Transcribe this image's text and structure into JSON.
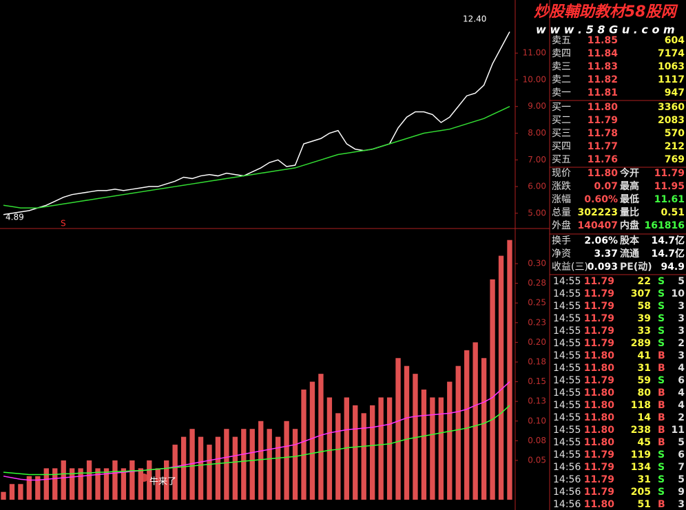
{
  "watermark": {
    "title": "炒股輔助教材58股网",
    "url": "w w w . 5 8 G u . c o m"
  },
  "price_chart": {
    "type": "line",
    "series": [
      {
        "color": "#ffffff",
        "values": [
          4.95,
          5.0,
          5.05,
          5.1,
          5.2,
          5.3,
          5.45,
          5.6,
          5.7,
          5.75,
          5.8,
          5.85,
          5.85,
          5.9,
          5.85,
          5.9,
          5.95,
          6.0,
          6.0,
          6.1,
          6.2,
          6.35,
          6.3,
          6.4,
          6.45,
          6.4,
          6.5,
          6.45,
          6.4,
          6.55,
          6.7,
          6.9,
          7.0,
          6.75,
          6.8,
          7.6,
          7.7,
          7.8,
          8.0,
          8.1,
          7.6,
          7.4,
          7.35,
          7.4,
          7.5,
          7.6,
          8.2,
          8.6,
          8.8,
          8.8,
          8.7,
          8.4,
          8.6,
          9.0,
          9.4,
          9.5,
          9.8,
          10.6,
          11.2,
          11.8
        ]
      },
      {
        "color": "#33dd33",
        "values": [
          5.3,
          5.25,
          5.2,
          5.2,
          5.2,
          5.25,
          5.3,
          5.35,
          5.4,
          5.45,
          5.5,
          5.55,
          5.6,
          5.65,
          5.7,
          5.75,
          5.8,
          5.85,
          5.9,
          5.95,
          6.0,
          6.05,
          6.1,
          6.15,
          6.2,
          6.25,
          6.3,
          6.35,
          6.4,
          6.45,
          6.5,
          6.55,
          6.6,
          6.65,
          6.7,
          6.8,
          6.9,
          7.0,
          7.1,
          7.2,
          7.25,
          7.3,
          7.35,
          7.4,
          7.5,
          7.6,
          7.7,
          7.8,
          7.9,
          8.0,
          8.05,
          8.1,
          8.15,
          8.25,
          8.35,
          8.45,
          8.55,
          8.7,
          8.85,
          9.0
        ]
      }
    ],
    "ylim": [
      4.48,
      12.99
    ],
    "yticks": [
      {
        "value": 11,
        "label": "11.00"
      },
      {
        "value": 10,
        "label": "10.00"
      },
      {
        "value": 9,
        "label": "9.00"
      },
      {
        "value": 8,
        "label": "8.00"
      },
      {
        "value": 7,
        "label": "7.00"
      },
      {
        "value": 6,
        "label": "6.00"
      },
      {
        "value": 5,
        "label": "5.00"
      }
    ],
    "annotations": [
      "12.40",
      "4.89",
      "S"
    ]
  },
  "volume_chart": {
    "type": "bar",
    "values": [
      0.01,
      0.02,
      0.02,
      0.03,
      0.03,
      0.04,
      0.04,
      0.05,
      0.04,
      0.04,
      0.05,
      0.04,
      0.04,
      0.05,
      0.04,
      0.05,
      0.04,
      0.05,
      0.04,
      0.05,
      0.07,
      0.08,
      0.09,
      0.08,
      0.07,
      0.08,
      0.09,
      0.08,
      0.09,
      0.09,
      0.1,
      0.09,
      0.08,
      0.1,
      0.09,
      0.14,
      0.15,
      0.16,
      0.13,
      0.11,
      0.13,
      0.12,
      0.11,
      0.12,
      0.13,
      0.13,
      0.18,
      0.17,
      0.16,
      0.14,
      0.13,
      0.13,
      0.15,
      0.17,
      0.19,
      0.2,
      0.18,
      0.28,
      0.31,
      0.33
    ],
    "color": "#e05050",
    "series": [
      {
        "color": "#ff33ff",
        "values": [
          0.03,
          0.028,
          0.026,
          0.025,
          0.025,
          0.026,
          0.027,
          0.028,
          0.029,
          0.03,
          0.031,
          0.032,
          0.033,
          0.034,
          0.035,
          0.036,
          0.037,
          0.038,
          0.039,
          0.04,
          0.042,
          0.044,
          0.046,
          0.048,
          0.05,
          0.052,
          0.054,
          0.056,
          0.058,
          0.06,
          0.062,
          0.064,
          0.066,
          0.068,
          0.07,
          0.074,
          0.078,
          0.082,
          0.085,
          0.087,
          0.089,
          0.09,
          0.091,
          0.092,
          0.094,
          0.096,
          0.1,
          0.104,
          0.106,
          0.107,
          0.108,
          0.109,
          0.11,
          0.112,
          0.115,
          0.12,
          0.124,
          0.13,
          0.14,
          0.15
        ]
      },
      {
        "color": "#33ff33",
        "values": [
          0.035,
          0.034,
          0.033,
          0.032,
          0.032,
          0.032,
          0.032,
          0.033,
          0.033,
          0.034,
          0.034,
          0.035,
          0.035,
          0.036,
          0.036,
          0.037,
          0.037,
          0.038,
          0.039,
          0.04,
          0.041,
          0.042,
          0.043,
          0.044,
          0.045,
          0.046,
          0.047,
          0.048,
          0.049,
          0.05,
          0.051,
          0.052,
          0.053,
          0.054,
          0.055,
          0.057,
          0.059,
          0.061,
          0.063,
          0.064,
          0.066,
          0.067,
          0.068,
          0.069,
          0.07,
          0.071,
          0.074,
          0.077,
          0.079,
          0.081,
          0.083,
          0.085,
          0.087,
          0.089,
          0.091,
          0.094,
          0.097,
          0.102,
          0.11,
          0.12
        ]
      }
    ],
    "ylim": [
      -0.013,
      0.342
    ],
    "yticks": [
      {
        "value": 0.3,
        "label": "0.30"
      },
      {
        "value": 0.275,
        "label": "0.28"
      },
      {
        "value": 0.25,
        "label": "0.25"
      },
      {
        "value": 0.225,
        "label": "0.23"
      },
      {
        "value": 0.2,
        "label": "0.20"
      },
      {
        "value": 0.175,
        "label": "0.18"
      },
      {
        "value": 0.15,
        "label": "0.15"
      },
      {
        "value": 0.125,
        "label": "0.13"
      },
      {
        "value": 0.1,
        "label": "0.10"
      },
      {
        "value": 0.075,
        "label": "0.08"
      },
      {
        "value": 0.05,
        "label": "0.05"
      }
    ],
    "annotation": "牛来了"
  },
  "order_book": {
    "asks": [
      [
        "卖五",
        "11.85",
        "604"
      ],
      [
        "卖四",
        "11.84",
        "7174"
      ],
      [
        "卖三",
        "11.83",
        "1063"
      ],
      [
        "卖二",
        "11.82",
        "1117"
      ],
      [
        "卖一",
        "11.81",
        "947"
      ]
    ],
    "bids": [
      [
        "买一",
        "11.80",
        "3360"
      ],
      [
        "买二",
        "11.79",
        "2083"
      ],
      [
        "买三",
        "11.78",
        "570"
      ],
      [
        "买四",
        "11.77",
        "212"
      ],
      [
        "买五",
        "11.76",
        "769"
      ]
    ]
  },
  "quote": [
    [
      "现价",
      "11.80",
      "今开",
      "11.79"
    ],
    [
      "涨跌",
      "0.07",
      "最高",
      "11.95"
    ],
    [
      "涨幅",
      "0.60%",
      "最低",
      "11.61"
    ],
    [
      "总量",
      "302223",
      "量比",
      "0.51"
    ],
    [
      "外盘",
      "140407",
      "内盘",
      "161816"
    ]
  ],
  "info": [
    [
      "换手",
      "2.06%",
      "股本",
      "14.7亿"
    ],
    [
      "净资",
      "3.37",
      "流通",
      "14.7亿"
    ],
    [
      "收益(三)",
      "0.093",
      "PE(动)",
      "94.9"
    ]
  ],
  "trades": [
    [
      "14:55",
      "11.79",
      "22",
      "S",
      "5"
    ],
    [
      "14:55",
      "11.79",
      "307",
      "S",
      "10"
    ],
    [
      "14:55",
      "11.79",
      "58",
      "S",
      "3"
    ],
    [
      "14:55",
      "11.79",
      "39",
      "S",
      "3"
    ],
    [
      "14:55",
      "11.79",
      "33",
      "S",
      "3"
    ],
    [
      "14:55",
      "11.79",
      "289",
      "S",
      "2"
    ],
    [
      "14:55",
      "11.80",
      "41",
      "B",
      "3"
    ],
    [
      "14:55",
      "11.80",
      "31",
      "B",
      "4"
    ],
    [
      "14:55",
      "11.79",
      "59",
      "S",
      "6"
    ],
    [
      "14:55",
      "11.80",
      "80",
      "B",
      "4"
    ],
    [
      "14:55",
      "11.80",
      "118",
      "B",
      "4"
    ],
    [
      "14:55",
      "11.80",
      "14",
      "B",
      "2"
    ],
    [
      "14:55",
      "11.80",
      "238",
      "B",
      "11"
    ],
    [
      "14:55",
      "11.80",
      "45",
      "B",
      "5"
    ],
    [
      "14:55",
      "11.79",
      "119",
      "S",
      "6"
    ],
    [
      "14:56",
      "11.79",
      "134",
      "S",
      "7"
    ],
    [
      "14:56",
      "11.79",
      "31",
      "S",
      "5"
    ],
    [
      "14:56",
      "11.79",
      "205",
      "S",
      "9"
    ],
    [
      "14:56",
      "11.80",
      "51",
      "B",
      "3"
    ]
  ]
}
